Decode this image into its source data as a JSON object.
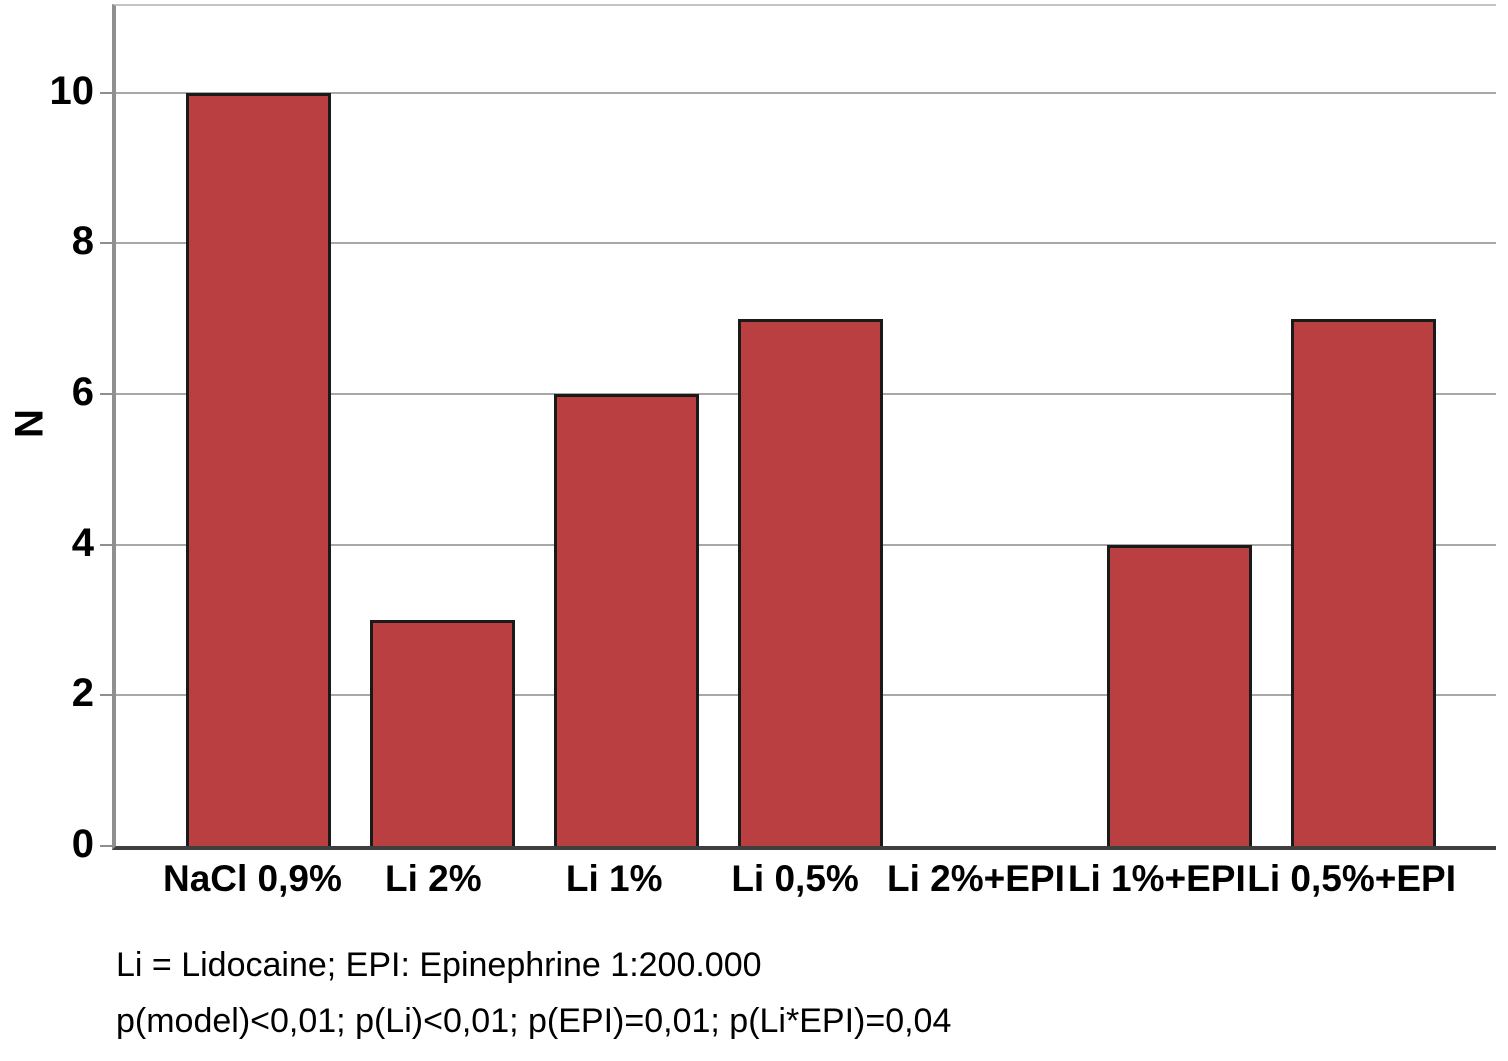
{
  "chart_data": {
    "type": "bar",
    "title": "",
    "xlabel": "",
    "ylabel": "N",
    "categories": [
      "NaCl 0,9%",
      "Li 2%",
      "Li 1%",
      "Li 0,5%",
      "Li 2%+EPI",
      "Li 1%+EPI",
      "Li 0,5%+EPI"
    ],
    "values": [
      10,
      3,
      6,
      7,
      0,
      4,
      7
    ],
    "y_ticks": [
      0,
      2,
      4,
      6,
      8,
      10
    ],
    "ylim": [
      0,
      11.15
    ],
    "grid": "horizontal-gridlines-on",
    "legend": "none",
    "bar_color": "#b93f41",
    "bar_border_color": "#1a1a1a",
    "gridline_color": "#a8a8a8"
  },
  "footnotes": {
    "line1": "Li = Lidocaine; EPI: Epinephrine 1:200.000",
    "line2": "p(model)<0,01; p(Li)<0,01; p(EPI)=0,01; p(Li*EPI)=0,04"
  }
}
